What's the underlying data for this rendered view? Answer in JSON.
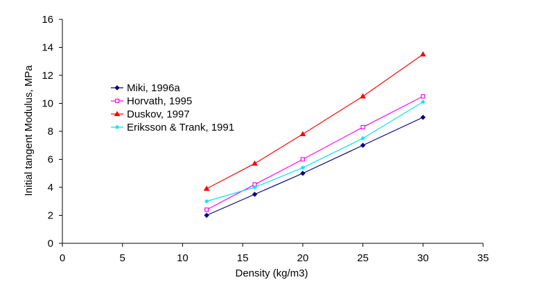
{
  "chart_data": {
    "type": "line",
    "title": "",
    "xlabel": "Density (kg/m3)",
    "ylabel": "Initial tangent Modulus, MPa",
    "xlim": [
      0,
      35
    ],
    "ylim": [
      0,
      16
    ],
    "xticks": [
      0,
      5,
      10,
      15,
      20,
      25,
      30,
      35
    ],
    "yticks": [
      0,
      2,
      4,
      6,
      8,
      10,
      12,
      14,
      16
    ],
    "grid": false,
    "legend_position": "left-center",
    "series": [
      {
        "name": "Miki, 1996a",
        "color": "#000080",
        "marker": "diamond",
        "x": [
          12,
          16,
          20,
          25,
          30
        ],
        "y": [
          2.0,
          3.5,
          5.0,
          7.0,
          9.0
        ]
      },
      {
        "name": "Horvath, 1995",
        "color": "#ff00ff",
        "marker": "square",
        "x": [
          12,
          16,
          20,
          25,
          30
        ],
        "y": [
          2.4,
          4.2,
          6.0,
          8.3,
          10.5
        ]
      },
      {
        "name": "Duskov, 1997",
        "color": "#ff0000",
        "marker": "triangle",
        "x": [
          12,
          16,
          20,
          25,
          30
        ],
        "y": [
          3.9,
          5.7,
          7.8,
          10.5,
          13.5
        ]
      },
      {
        "name": "Eriksson & Trank, 1991",
        "color": "#00e5ee",
        "marker": "star",
        "x": [
          12,
          16,
          20,
          25,
          30
        ],
        "y": [
          3.0,
          4.0,
          5.4,
          7.5,
          10.1
        ]
      }
    ]
  }
}
